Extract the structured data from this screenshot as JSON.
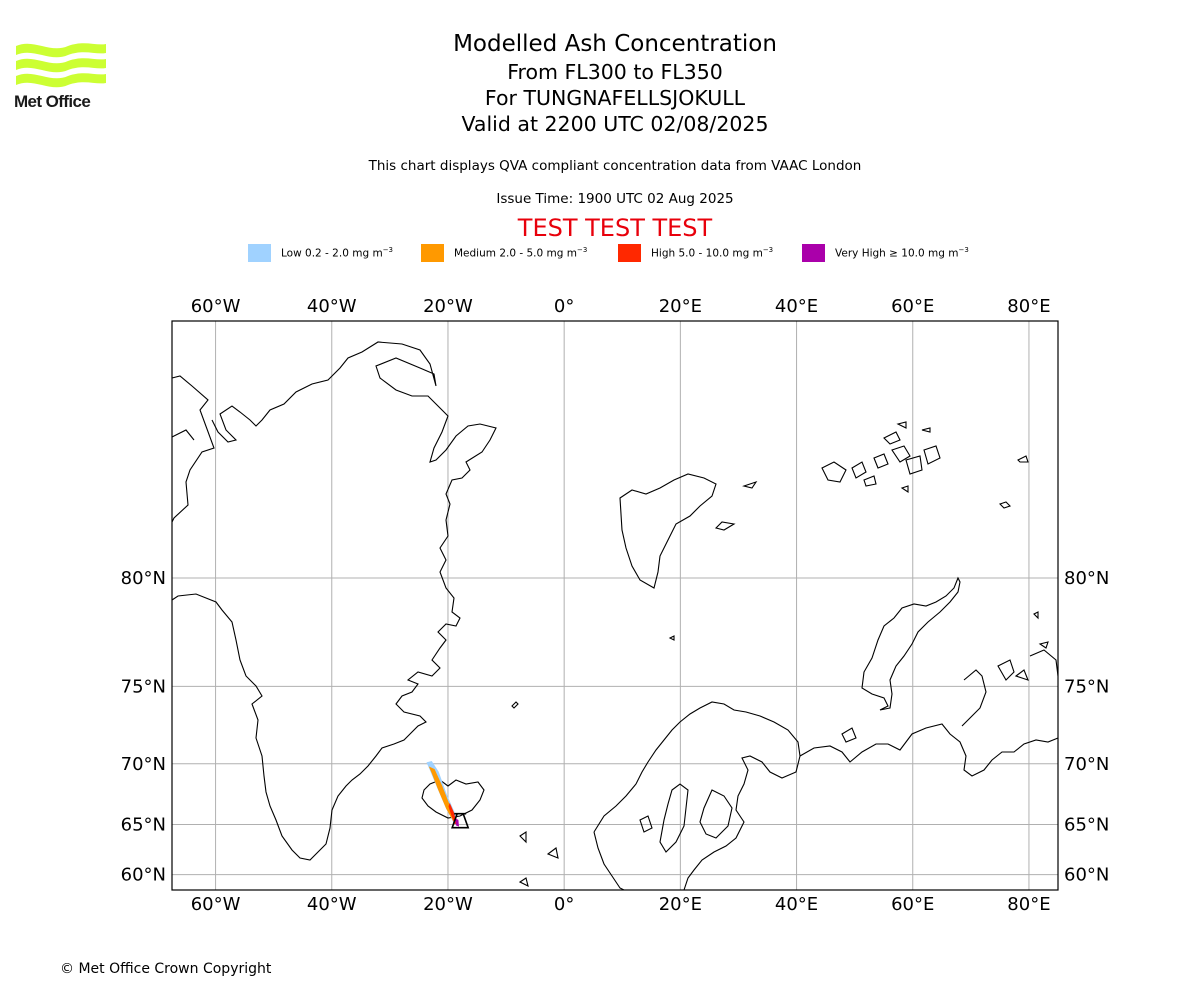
{
  "logo": {
    "name": "Met Office",
    "color": "#ccff33"
  },
  "title": {
    "main": "Modelled Ash Concentration",
    "levels": "From FL300 to FL350",
    "volcano": "For TUNGNAFELLSJOKULL",
    "valid": "Valid at 2200 UTC 02/08/2025"
  },
  "notes": {
    "compliance": "This chart displays QVA compliant concentration data from VAAC London",
    "issue_time": "Issue Time: 1900 UTC 02 Aug 2025",
    "test_banner": "TEST TEST TEST"
  },
  "legend": [
    {
      "label": "Low 0.2 - 2.0 mg m",
      "exp": "−3",
      "color": "#a0d2ff"
    },
    {
      "label": "Medium 2.0 - 5.0 mg m",
      "exp": "−3",
      "color": "#ff9900"
    },
    {
      "label": "High 5.0 - 10.0 mg m",
      "exp": "−3",
      "color": "#ff2800"
    },
    {
      "label": "Very High  ≥  10.0 mg m",
      "exp": "−3",
      "color": "#aa00aa"
    }
  ],
  "map": {
    "projection": "Mercator",
    "lon_range": [
      -67.5,
      85
    ],
    "lat_range": [
      58.3,
      86.2
    ],
    "lon_ticks": [
      {
        "value": -60,
        "label": "60°W"
      },
      {
        "value": -40,
        "label": "40°W"
      },
      {
        "value": -20,
        "label": "20°W"
      },
      {
        "value": 0,
        "label": "0°"
      },
      {
        "value": 20,
        "label": "20°E"
      },
      {
        "value": 40,
        "label": "40°E"
      },
      {
        "value": 60,
        "label": "60°E"
      },
      {
        "value": 80,
        "label": "80°E"
      }
    ],
    "lat_ticks": [
      {
        "value": 60,
        "label": "60°N"
      },
      {
        "value": 65,
        "label": "65°N"
      },
      {
        "value": 70,
        "label": "70°N"
      },
      {
        "value": 75,
        "label": "75°N"
      },
      {
        "value": 80,
        "label": "80°N"
      }
    ],
    "grid": true,
    "volcano": {
      "name": "TUNGNAFELLSJOKULL",
      "lat": 64.7,
      "lon": -17.9
    },
    "ash_plume": {
      "low": {
        "color": "#a0d2ff",
        "points": [
          [
            -23.7,
            70.1
          ],
          [
            -22.8,
            70.2
          ],
          [
            -21.6,
            69.4
          ],
          [
            -20.2,
            67.6
          ],
          [
            -18.7,
            65.9
          ],
          [
            -18.4,
            64.9
          ],
          [
            -19.0,
            65.1
          ],
          [
            -20.4,
            66.5
          ],
          [
            -21.9,
            68.2
          ],
          [
            -23.2,
            69.6
          ]
        ]
      },
      "medium": {
        "color": "#ff9900",
        "points": [
          [
            -23.3,
            69.8
          ],
          [
            -22.3,
            69.6
          ],
          [
            -21.0,
            68.3
          ],
          [
            -19.6,
            66.6
          ],
          [
            -18.7,
            65.4
          ],
          [
            -19.0,
            65.2
          ],
          [
            -20.3,
            66.4
          ],
          [
            -21.7,
            68.0
          ],
          [
            -22.8,
            69.3
          ]
        ]
      },
      "high": {
        "color": "#ff2800",
        "points": [
          [
            -19.7,
            66.9
          ],
          [
            -19.0,
            66.1
          ],
          [
            -18.5,
            65.1
          ],
          [
            -18.8,
            65.0
          ],
          [
            -19.5,
            65.9
          ],
          [
            -19.9,
            66.6
          ]
        ]
      },
      "very_high": {
        "color": "#aa00aa",
        "points": [
          [
            -18.8,
            65.6
          ],
          [
            -18.2,
            65.4
          ],
          [
            -18.1,
            64.8
          ],
          [
            -18.6,
            64.9
          ]
        ]
      }
    }
  },
  "footer": {
    "copyright": "© Met Office Crown Copyright"
  }
}
